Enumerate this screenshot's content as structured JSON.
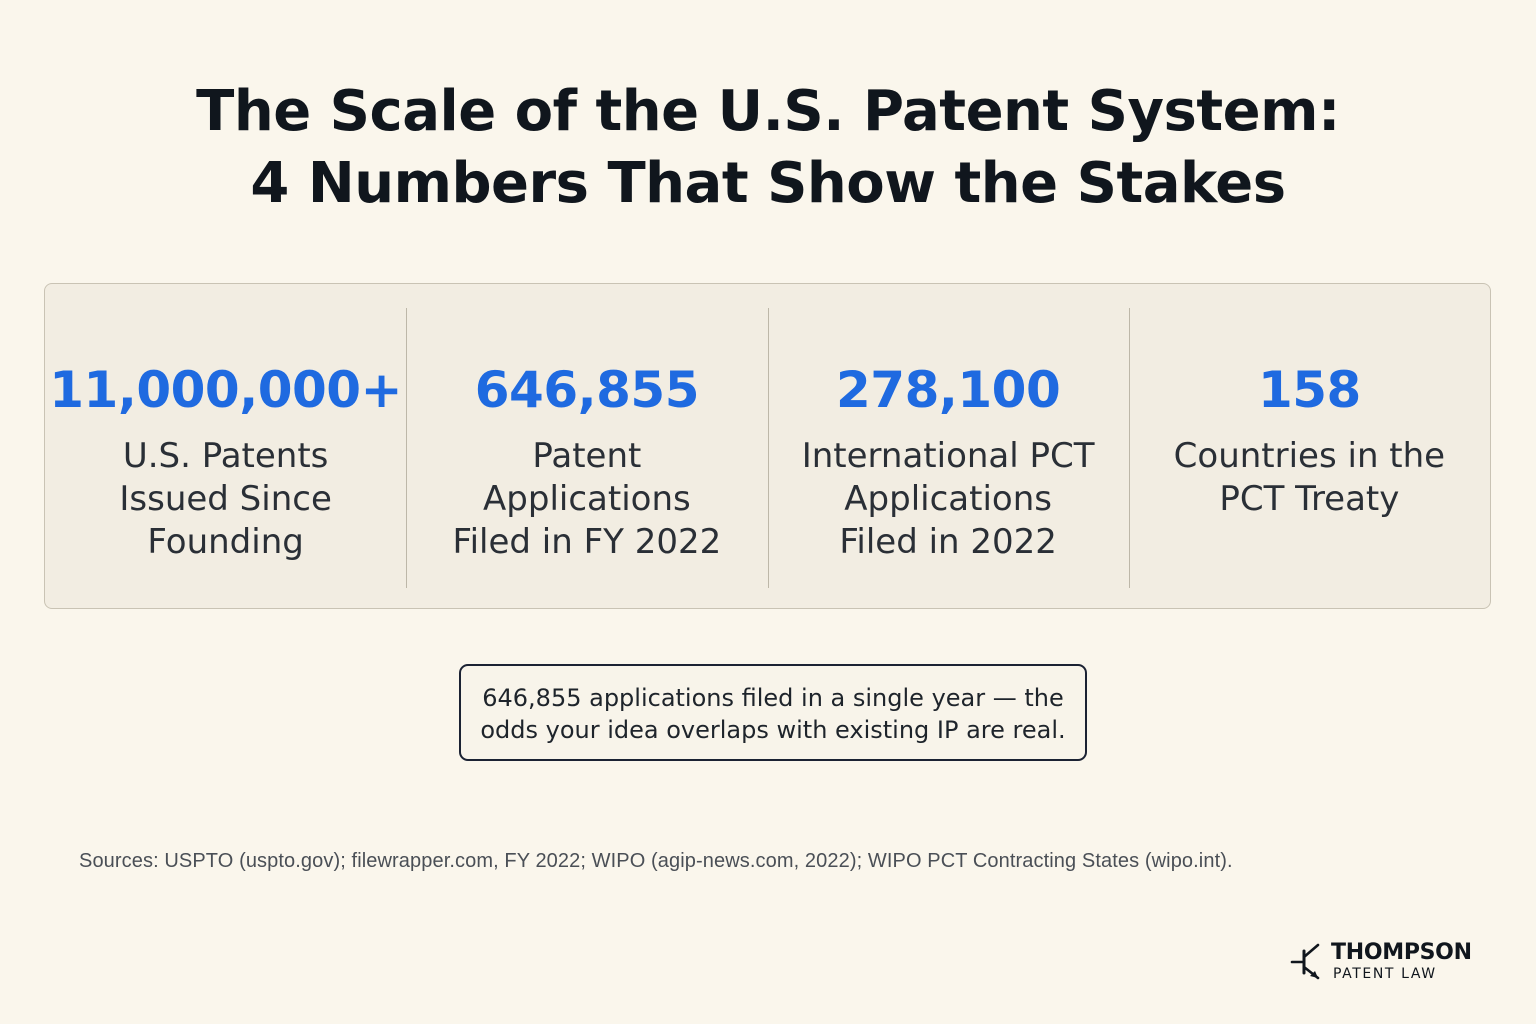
{
  "title": {
    "line1": "The Scale of the U.S. Patent System:",
    "line2": "4 Numbers That Show the Stakes"
  },
  "stats": [
    {
      "value": "11,000,000+",
      "label": "U.S. Patents\nIssued Since\nFounding"
    },
    {
      "value": "646,855",
      "label": "Patent\nApplications\nFiled in FY 2022"
    },
    {
      "value": "278,100",
      "label": "International PCT\nApplications\nFiled in 2022"
    },
    {
      "value": "158",
      "label": "Countries in the\nPCT Treaty"
    }
  ],
  "callout": {
    "line1": "646,855 applications filed in a single year — the",
    "line2": "odds your idea overlaps with existing IP are real."
  },
  "sources": "Sources: USPTO (uspto.gov); filewrapper.com, FY 2022; WIPO (agip-news.com, 2022); WIPO PCT Contracting States   (wipo.int).",
  "logo": {
    "name": "THOMPSON",
    "subtitle": "PATENT LAW",
    "icon": "transistor-symbol-icon"
  },
  "colors": {
    "background": "#faf6ec",
    "accent": "#1f6ae0",
    "panel": "#f2ede2",
    "text": "#10161d"
  }
}
